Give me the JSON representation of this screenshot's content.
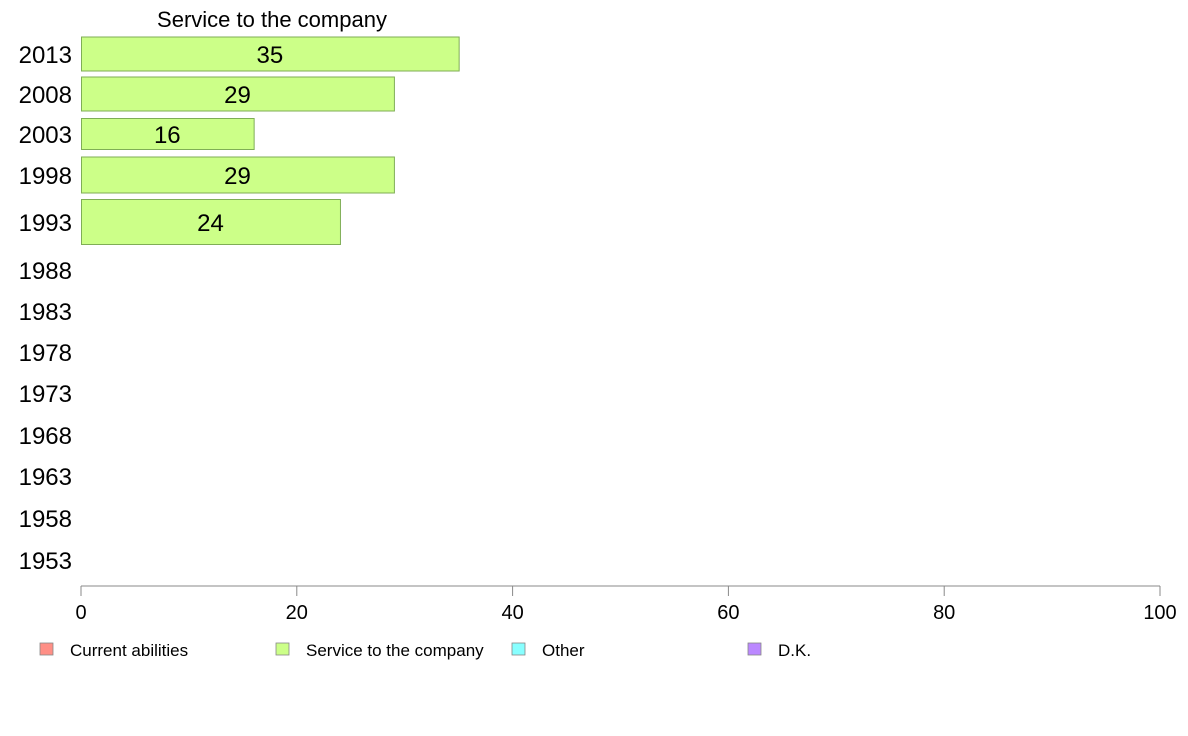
{
  "chart_data": {
    "type": "bar",
    "orientation": "horizontal",
    "title": "Service to the company",
    "categories": [
      "2013",
      "2008",
      "2003",
      "1998",
      "1993",
      "1988",
      "1983",
      "1978",
      "1973",
      "1968",
      "1963",
      "1958",
      "1953"
    ],
    "series": [
      {
        "name": "Service to the company",
        "values": [
          35,
          29,
          16,
          29,
          24,
          null,
          null,
          null,
          null,
          null,
          null,
          null,
          null
        ]
      }
    ],
    "data_labels": [
      "35",
      "29",
      "16",
      "29",
      "24"
    ],
    "xlim": [
      0,
      100
    ],
    "x_ticks": [
      "0",
      "20",
      "40",
      "60",
      "80",
      "100"
    ],
    "grid": false,
    "legend_position": "bottom",
    "legend": [
      {
        "label": "Current abilities",
        "color": "#ff8f86"
      },
      {
        "label": "Service to the company",
        "color": "#ccff88"
      },
      {
        "label": "Other",
        "color": "#88ffff"
      },
      {
        "label": "D.K.",
        "color": "#bb88ff"
      }
    ],
    "bar_color": "#ccff88",
    "bar_stroke": "#7fae55"
  }
}
